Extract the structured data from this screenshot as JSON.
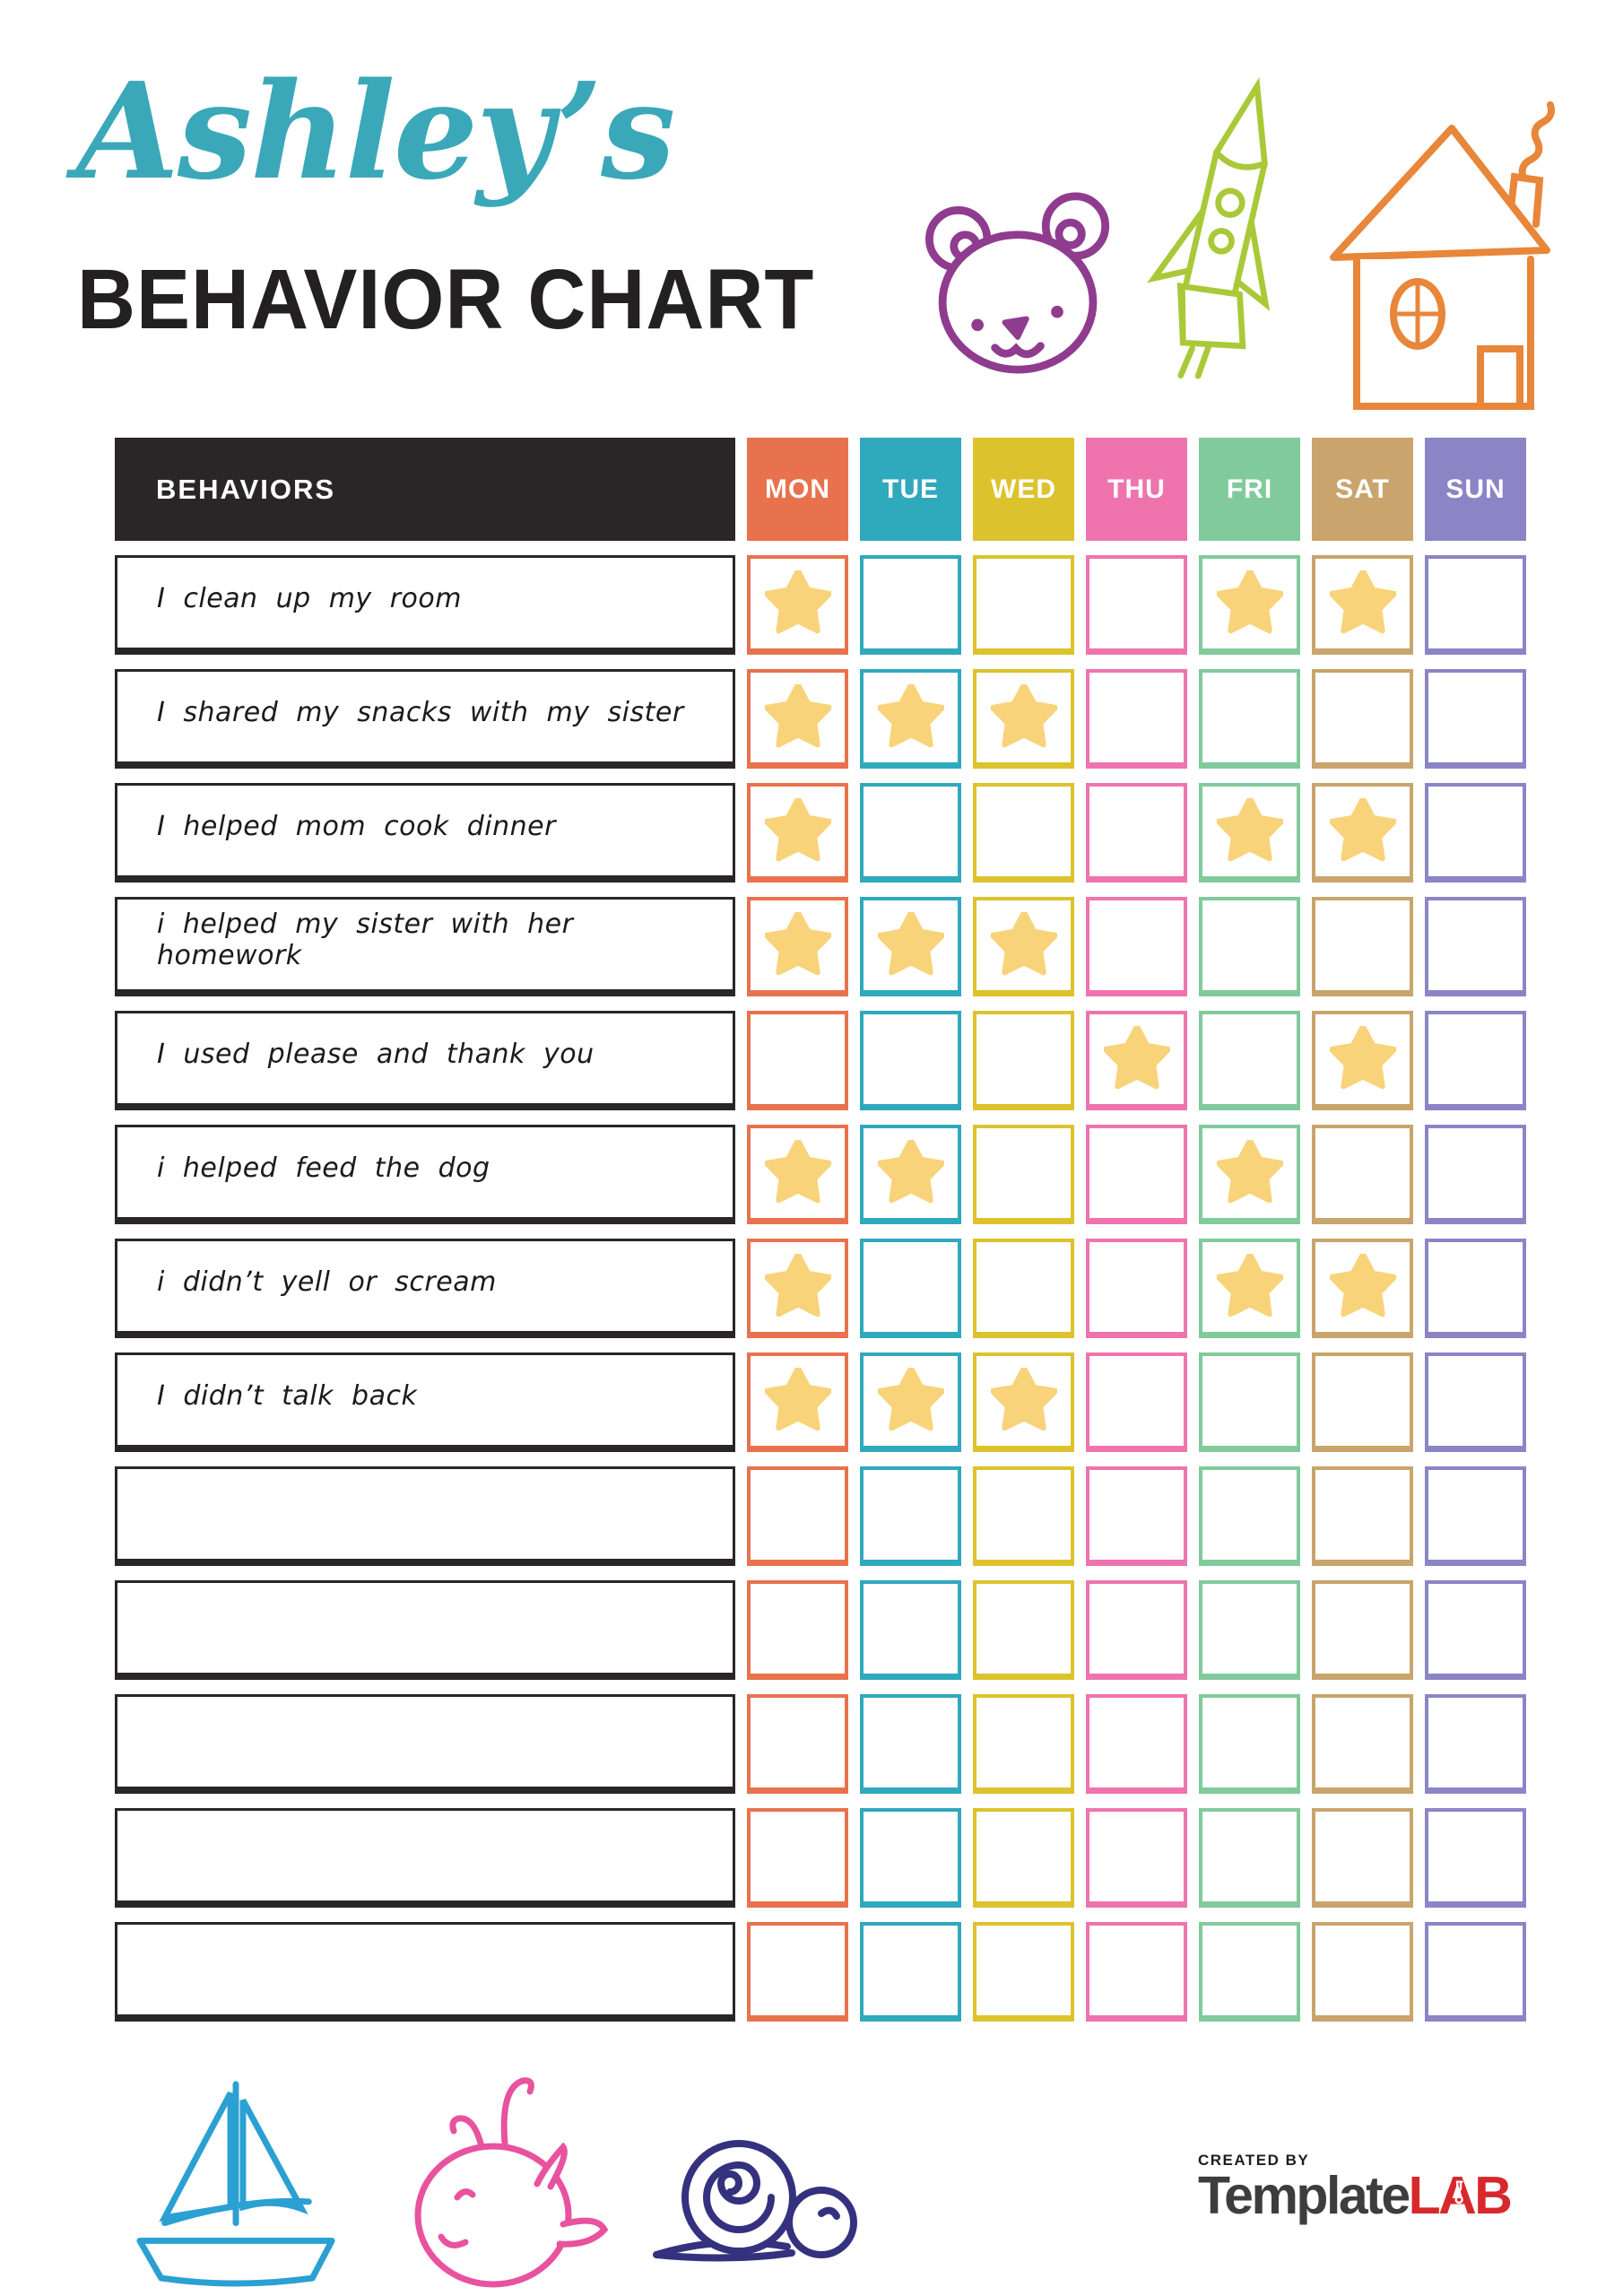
{
  "header": {
    "child_name": "Ashley’s",
    "name_color": "#3aa8b8",
    "title": "BEHAVIOR CHART",
    "title_color": "#232021",
    "doodles": [
      {
        "name": "bear",
        "color": "#8f3c8f"
      },
      {
        "name": "rocket",
        "color": "#a9c938"
      },
      {
        "name": "house",
        "color": "#e8863a"
      }
    ]
  },
  "table": {
    "behaviors_header": "BEHAVIORS",
    "header_bg": "#2a2627",
    "header_text_color": "#ffffff",
    "star_color": "#f8d379",
    "days": [
      {
        "label": "MON",
        "color": "#e8724e"
      },
      {
        "label": "TUE",
        "color": "#2fa9bc"
      },
      {
        "label": "WED",
        "color": "#dcc32d"
      },
      {
        "label": "THU",
        "color": "#ef74ae"
      },
      {
        "label": "FRI",
        "color": "#81ca9c"
      },
      {
        "label": "SAT",
        "color": "#c9a46c"
      },
      {
        "label": "SUN",
        "color": "#8b85c6"
      }
    ],
    "rows": [
      {
        "behavior": "I clean up my room",
        "stars": [
          1,
          0,
          0,
          0,
          1,
          1,
          0
        ]
      },
      {
        "behavior": "I shared my snacks with my sister",
        "stars": [
          1,
          1,
          1,
          0,
          0,
          0,
          0
        ]
      },
      {
        "behavior": "I helped mom cook dinner",
        "stars": [
          1,
          0,
          0,
          0,
          1,
          1,
          0
        ]
      },
      {
        "behavior": "i helped my sister with her homework",
        "stars": [
          1,
          1,
          1,
          0,
          0,
          0,
          0
        ]
      },
      {
        "behavior": "I used please and thank you",
        "stars": [
          0,
          0,
          0,
          1,
          0,
          1,
          0
        ]
      },
      {
        "behavior": "i helped feed the dog",
        "stars": [
          1,
          1,
          0,
          0,
          1,
          0,
          0
        ]
      },
      {
        "behavior": "i didn’t yell or scream",
        "stars": [
          1,
          0,
          0,
          0,
          1,
          1,
          0
        ]
      },
      {
        "behavior": "I didn’t talk back",
        "stars": [
          1,
          1,
          1,
          0,
          0,
          0,
          0
        ]
      },
      {
        "behavior": "",
        "stars": [
          0,
          0,
          0,
          0,
          0,
          0,
          0
        ]
      },
      {
        "behavior": "",
        "stars": [
          0,
          0,
          0,
          0,
          0,
          0,
          0
        ]
      },
      {
        "behavior": "",
        "stars": [
          0,
          0,
          0,
          0,
          0,
          0,
          0
        ]
      },
      {
        "behavior": "",
        "stars": [
          0,
          0,
          0,
          0,
          0,
          0,
          0
        ]
      },
      {
        "behavior": "",
        "stars": [
          0,
          0,
          0,
          0,
          0,
          0,
          0
        ]
      }
    ]
  },
  "footer": {
    "doodles": [
      {
        "name": "sailboat",
        "color": "#2ba0d2"
      },
      {
        "name": "whale",
        "color": "#e8529e"
      },
      {
        "name": "snail",
        "color": "#34317e"
      }
    ],
    "logo": {
      "created_by": "CREATED BY",
      "brand_primary": "Template",
      "brand_accent": "LAB",
      "primary_color": "#3d3d3d",
      "accent_color": "#d7282c"
    }
  }
}
